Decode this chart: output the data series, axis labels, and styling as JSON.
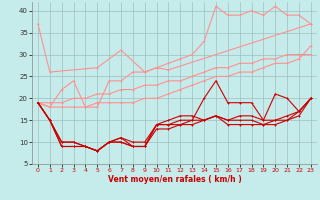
{
  "title": "",
  "xlabel": "Vent moyen/en rafales ( km/h )",
  "xlim": [
    -0.5,
    23.5
  ],
  "ylim": [
    5,
    42
  ],
  "yticks": [
    5,
    10,
    15,
    20,
    25,
    30,
    35,
    40
  ],
  "xticks": [
    0,
    1,
    2,
    3,
    4,
    5,
    6,
    7,
    8,
    9,
    10,
    11,
    12,
    13,
    14,
    15,
    16,
    17,
    18,
    19,
    20,
    21,
    22,
    23
  ],
  "bg_color": "#c6ebeb",
  "grid_color": "#9dbfbf",
  "series": [
    {
      "x": [
        0,
        1,
        5,
        7,
        9,
        10,
        11,
        23
      ],
      "y": [
        37,
        26,
        27,
        31,
        26,
        27,
        26.5,
        37
      ],
      "color": "#ff9090",
      "lw": 0.8,
      "marker": "+"
    },
    {
      "x": [
        0,
        1,
        2,
        3,
        4,
        5,
        6,
        7,
        8,
        9,
        10,
        11,
        12,
        13,
        14,
        15,
        16,
        17,
        18,
        19,
        20,
        21,
        22,
        23
      ],
      "y": [
        19,
        19,
        19,
        20,
        20,
        21,
        21,
        22,
        22,
        23,
        23,
        24,
        24,
        25,
        26,
        27,
        27,
        28,
        28,
        29,
        29,
        30,
        30,
        30
      ],
      "color": "#ff9090",
      "lw": 0.8,
      "marker": "+"
    },
    {
      "x": [
        0,
        1,
        2,
        3,
        4,
        5,
        6,
        7,
        8,
        9,
        10,
        11,
        12,
        13,
        14,
        15,
        16,
        17,
        18,
        19,
        20,
        21,
        22,
        23
      ],
      "y": [
        19,
        18,
        18,
        18,
        18,
        19,
        19,
        19,
        19,
        20,
        20,
        21,
        22,
        23,
        24,
        25,
        25,
        26,
        26,
        27,
        28,
        28,
        29,
        32
      ],
      "color": "#ff9090",
      "lw": 0.8,
      "marker": "+"
    },
    {
      "x": [
        0,
        1,
        2,
        3,
        4,
        5,
        6,
        7,
        8,
        9,
        10,
        11,
        12,
        13,
        14,
        15,
        16,
        17,
        18,
        19,
        20,
        21,
        22,
        23
      ],
      "y": [
        19,
        18,
        22,
        24,
        18,
        18,
        24,
        24,
        26,
        26,
        27,
        28,
        29,
        30,
        33,
        41,
        39,
        39,
        40,
        39,
        41,
        39,
        39,
        37
      ],
      "color": "#ff9090",
      "lw": 0.8,
      "marker": "+"
    },
    {
      "x": [
        0,
        1,
        2,
        3,
        4,
        5,
        6,
        7,
        8,
        9,
        10,
        11,
        12,
        13,
        14,
        15,
        16,
        17,
        18,
        19,
        20,
        21,
        22,
        23
      ],
      "y": [
        19,
        15,
        10,
        10,
        9,
        8,
        10,
        11,
        10,
        10,
        14,
        15,
        16,
        16,
        15,
        16,
        15,
        16,
        16,
        15,
        15,
        16,
        17,
        20
      ],
      "color": "#cc0000",
      "lw": 0.8,
      "marker": "+"
    },
    {
      "x": [
        0,
        1,
        2,
        3,
        4,
        5,
        6,
        7,
        8,
        9,
        10,
        11,
        12,
        13,
        14,
        15,
        16,
        17,
        18,
        19,
        20,
        21,
        22,
        23
      ],
      "y": [
        19,
        15,
        10,
        10,
        9,
        8,
        10,
        11,
        9,
        9,
        14,
        14,
        15,
        15,
        15,
        16,
        15,
        15,
        15,
        14,
        15,
        15,
        17,
        20
      ],
      "color": "#cc0000",
      "lw": 0.8,
      "marker": "+"
    },
    {
      "x": [
        0,
        1,
        2,
        3,
        4,
        5,
        6,
        7,
        8,
        9,
        10,
        11,
        12,
        13,
        14,
        15,
        16,
        17,
        18,
        19,
        20,
        21,
        22,
        23
      ],
      "y": [
        19,
        15,
        9,
        9,
        9,
        8,
        10,
        10,
        9,
        9,
        14,
        14,
        14,
        15,
        20,
        24,
        19,
        19,
        19,
        15,
        21,
        20,
        17,
        20
      ],
      "color": "#cc0000",
      "lw": 0.8,
      "marker": "+"
    },
    {
      "x": [
        0,
        1,
        2,
        3,
        4,
        5,
        6,
        7,
        8,
        9,
        10,
        11,
        12,
        13,
        14,
        15,
        16,
        17,
        18,
        19,
        20,
        21,
        22,
        23
      ],
      "y": [
        19,
        15,
        9,
        9,
        9,
        8,
        10,
        10,
        9,
        9,
        13,
        13,
        14,
        14,
        15,
        16,
        14,
        14,
        14,
        14,
        14,
        15,
        16,
        20
      ],
      "color": "#cc0000",
      "lw": 0.8,
      "marker": "+"
    }
  ]
}
